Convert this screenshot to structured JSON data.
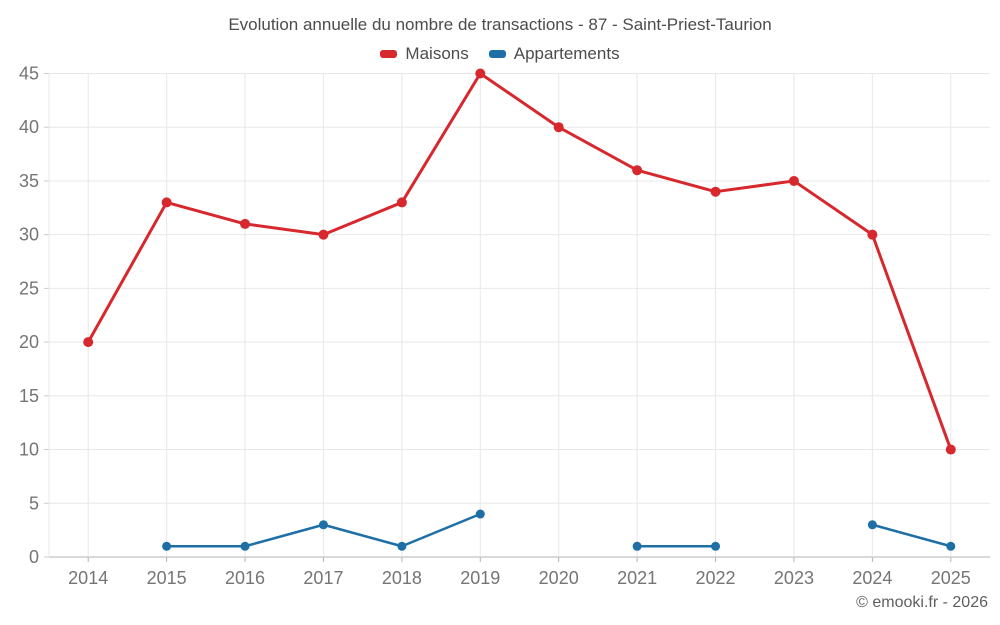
{
  "header": {
    "title": "Evolution annuelle du nombre de transactions - 87 - Saint-Priest-Taurion"
  },
  "footer": {
    "credit": "© emooki.fr - 2026"
  },
  "chart_data": {
    "type": "line",
    "title": "Evolution annuelle du nombre de transactions - 87 - Saint-Priest-Taurion",
    "categories": [
      "2014",
      "2015",
      "2016",
      "2017",
      "2018",
      "2019",
      "2020",
      "2021",
      "2022",
      "2023",
      "2024",
      "2025"
    ],
    "series": [
      {
        "name": "Maisons",
        "color": "#d7282d",
        "values": [
          20,
          33,
          31,
          30,
          33,
          45,
          40,
          36,
          34,
          35,
          30,
          10
        ]
      },
      {
        "name": "Appartements",
        "color": "#1d6fa5",
        "values": [
          null,
          1,
          1,
          3,
          1,
          4,
          null,
          1,
          1,
          null,
          3,
          1
        ]
      }
    ],
    "ylim": [
      0,
      45
    ],
    "ytick_step": 5,
    "grid": true,
    "legend_position": "top",
    "colors": {
      "grid": "#e8e8e8",
      "axis": "#b3b3b3",
      "left_tick": "#cccccc"
    }
  }
}
